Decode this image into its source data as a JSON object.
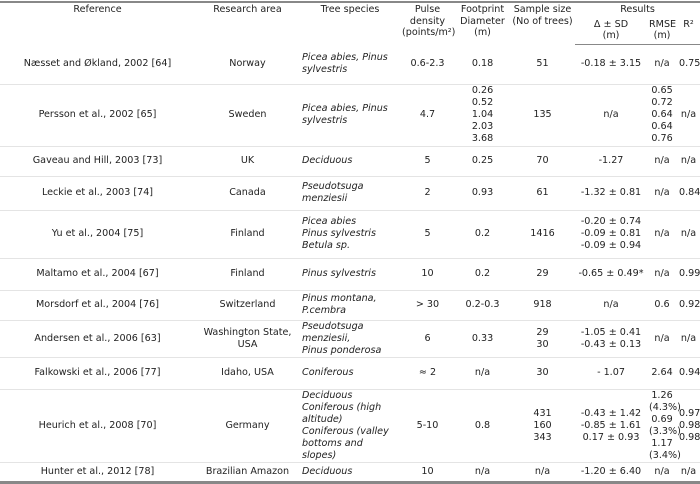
{
  "headers": {
    "reference": "Reference",
    "area": "Research area",
    "species": "Tree species",
    "pulse": "Pulse density",
    "pulse_unit": "(points/m²)",
    "footprint": "Footprint Diameter",
    "footprint_unit": "(m)",
    "sample": "Sample size (No of trees)",
    "results": "Results",
    "delta": "Δ ± SD",
    "delta_unit": "(m)",
    "rmse": "RMSE",
    "rmse_unit": "(m)",
    "r2": "R²"
  },
  "rows": [
    {
      "ref": "Næsset and Økland, 2002 [64]",
      "area": "Norway",
      "species": [
        "Picea abies, Pinus sylvestris"
      ],
      "pulse": "0.6-2.3",
      "foot": [
        "0.18"
      ],
      "sample": [
        "51"
      ],
      "delta": [
        "-0.18 ± 3.15"
      ],
      "rmse": [
        "n/a"
      ],
      "r2": [
        "0.75"
      ]
    },
    {
      "ref": "Persson et al., 2002 [65]",
      "area": "Sweden",
      "species": [
        "Picea abies, Pinus sylvestris"
      ],
      "pulse": "4.7",
      "foot": [
        "0.26",
        "0.52",
        "1.04",
        "2.03",
        "3.68"
      ],
      "sample": [
        "135"
      ],
      "delta": [
        "n/a"
      ],
      "rmse": [
        "0.65",
        "0.72",
        "0.64",
        "0.64",
        "0.76"
      ],
      "r2": [
        "n/a"
      ]
    },
    {
      "ref": "Gaveau and Hill, 2003 [73]",
      "area": "UK",
      "species": [
        "Deciduous"
      ],
      "pulse": "5",
      "foot": [
        "0.25"
      ],
      "sample": [
        "70"
      ],
      "delta": [
        "-1.27"
      ],
      "rmse": [
        "n/a"
      ],
      "r2": [
        "n/a"
      ]
    },
    {
      "ref": "Leckie et al., 2003 [74]",
      "area": "Canada",
      "species": [
        "Pseudotsuga menziesii"
      ],
      "pulse": "2",
      "foot": [
        "0.93"
      ],
      "sample": [
        "61"
      ],
      "delta": [
        "-1.32 ± 0.81"
      ],
      "rmse": [
        "n/a"
      ],
      "r2": [
        "0.84"
      ]
    },
    {
      "ref": "Yu et al., 2004 [75]",
      "area": "Finland",
      "species": [
        "Picea abies",
        "Pinus sylvestris",
        "Betula sp."
      ],
      "pulse": "5",
      "foot": [
        "0.2"
      ],
      "sample": [
        "1416"
      ],
      "delta": [
        "-0.20 ± 0.74",
        "-0.09 ± 0.81",
        "-0.09 ± 0.94"
      ],
      "rmse": [
        "n/a"
      ],
      "r2": [
        "n/a"
      ]
    },
    {
      "ref": "Maltamo et al., 2004 [67]",
      "area": "Finland",
      "species": [
        "Pinus sylvestris"
      ],
      "pulse": "10",
      "foot": [
        "0.2"
      ],
      "sample": [
        "29"
      ],
      "delta": [
        "-0.65 ± 0.49*"
      ],
      "rmse": [
        "n/a"
      ],
      "r2": [
        "0.99"
      ]
    },
    {
      "ref": "Morsdorf et al., 2004 [76]",
      "area": "Switzerland",
      "species": [
        "Pinus montana, P.cembra"
      ],
      "pulse": "> 30",
      "foot": [
        "0.2-0.3"
      ],
      "sample": [
        "918"
      ],
      "delta": [
        "n/a"
      ],
      "rmse": [
        "0.6"
      ],
      "r2": [
        "0.92"
      ]
    },
    {
      "ref": "Andersen et al., 2006 [63]",
      "area": "Washington State, USA",
      "species": [
        "Pseudotsuga menziesii,",
        "Pinus ponderosa"
      ],
      "pulse": "6",
      "foot": [
        "0.33"
      ],
      "sample": [
        "29",
        "30"
      ],
      "delta": [
        "-1.05 ± 0.41",
        "-0.43 ± 0.13"
      ],
      "rmse": [
        "n/a"
      ],
      "r2": [
        "n/a"
      ]
    },
    {
      "ref": "Falkowski et al., 2006 [77]",
      "area": "Idaho, USA",
      "species": [
        "Coniferous"
      ],
      "pulse": "≈ 2",
      "foot": [
        "n/a"
      ],
      "sample": [
        "30"
      ],
      "delta": [
        "- 1.07"
      ],
      "rmse": [
        "2.64"
      ],
      "r2": [
        "0.94"
      ]
    },
    {
      "ref": "Heurich et al., 2008 [70]",
      "area": "Germany",
      "species": [
        "Deciduous",
        "Coniferous (high altitude)",
        "Coniferous (valley bottoms and slopes)"
      ],
      "pulse": "5-10",
      "foot": [
        "0.8"
      ],
      "sample": [
        "431",
        "160",
        "343"
      ],
      "delta": [
        "-0.43 ± 1.42",
        "-0.85 ± 1.61",
        "0.17 ± 0.93"
      ],
      "rmse": [
        "1.26 (4.3%)",
        "0.69 (3.3%)",
        "1.17 (3.4%)"
      ],
      "r2": [
        "0.97",
        "0.98",
        "0.98"
      ]
    },
    {
      "ref": "Hunter et al., 2012 [78]",
      "area": "Brazilian Amazon",
      "species": [
        "Deciduous"
      ],
      "pulse": "10",
      "foot": [
        "n/a"
      ],
      "sample": [
        "n/a"
      ],
      "delta": [
        "-1.20 ± 6.40"
      ],
      "rmse": [
        "n/a"
      ],
      "r2": [
        "n/a"
      ]
    }
  ]
}
